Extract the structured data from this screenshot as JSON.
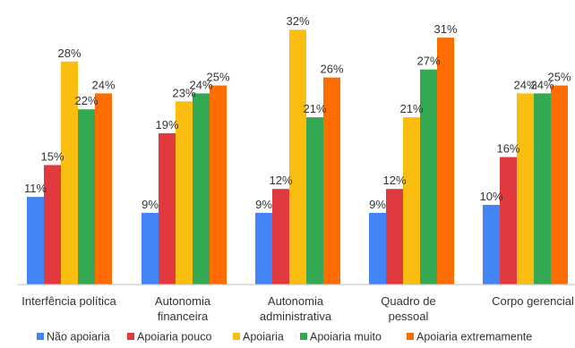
{
  "chart_data": {
    "type": "bar",
    "categories": [
      [
        "Interfência política"
      ],
      [
        "Autonomia",
        "financeira"
      ],
      [
        "Autonomia",
        "administrativa"
      ],
      [
        "Quadro de",
        "pessoal"
      ],
      [
        "Corpo gerencial"
      ]
    ],
    "series": [
      {
        "name": "Não apoiaria",
        "color": "#4285F4",
        "values": [
          11,
          9,
          9,
          9,
          10
        ]
      },
      {
        "name": "Apoiaria pouco",
        "color": "#E0393E",
        "values": [
          15,
          19,
          12,
          12,
          16
        ]
      },
      {
        "name": "Apoiaria",
        "color": "#F9BE0F",
        "values": [
          28,
          23,
          32,
          21,
          24
        ]
      },
      {
        "name": "Apoiaria muito",
        "color": "#34A853",
        "values": [
          22,
          24,
          21,
          27,
          24
        ]
      },
      {
        "name": "Apoiaria extremamente",
        "color": "#FF6D00",
        "values": [
          24,
          25,
          26,
          31,
          25
        ]
      }
    ],
    "value_suffix": "%",
    "ylim": [
      0,
      33
    ],
    "grid": false,
    "legend_position": "bottom"
  }
}
